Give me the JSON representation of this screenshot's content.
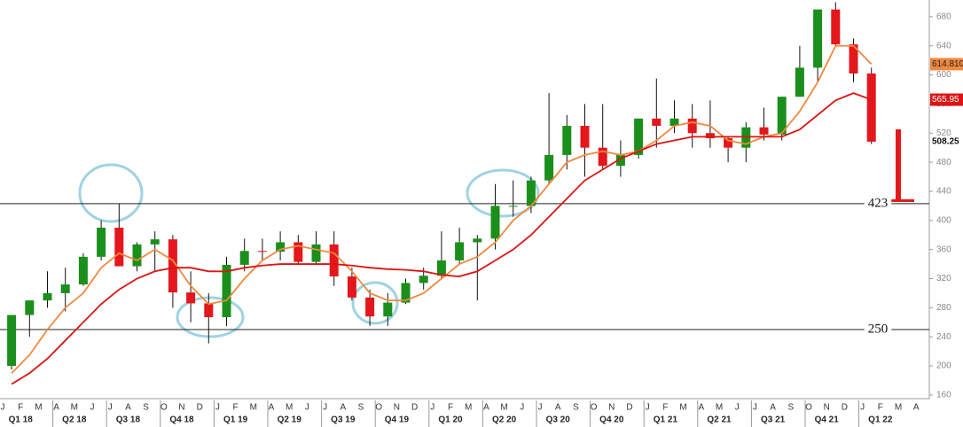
{
  "chart_data": {
    "type": "candlestick",
    "categories": [
      "J",
      "F",
      "M",
      "A",
      "M",
      "J",
      "J",
      "A",
      "S",
      "O",
      "N",
      "D",
      "J",
      "F",
      "M",
      "A",
      "M",
      "J",
      "J",
      "A",
      "S",
      "O",
      "N",
      "D",
      "J",
      "F",
      "M",
      "A",
      "M",
      "J",
      "J",
      "A",
      "S",
      "O",
      "N",
      "D",
      "J",
      "F",
      "M",
      "A",
      "M",
      "J",
      "J",
      "A",
      "S",
      "O",
      "N",
      "D",
      "J",
      "F",
      "M",
      "A"
    ],
    "quarters": [
      "Q1 18",
      "Q2 18",
      "Q3 18",
      "Q4 18",
      "Q1 19",
      "Q2 19",
      "Q3 19",
      "Q4 19",
      "Q1 20",
      "Q2 20",
      "Q3 20",
      "Q4 20",
      "Q1 21",
      "Q2 21",
      "Q3 21",
      "Q4 21",
      "Q1 22"
    ],
    "candles": {
      "up_color": "#1b8f1b",
      "down_color": "#e3171c",
      "open": [
        200,
        270,
        290,
        300,
        312,
        350,
        390,
        337,
        367,
        374,
        301,
        286,
        267,
        339,
        358,
        357,
        370,
        343,
        367,
        323,
        294,
        268,
        287,
        314,
        324,
        345,
        370,
        375,
        420,
        420,
        455,
        490,
        530,
        500,
        475,
        490,
        540,
        530,
        540,
        520,
        513,
        500,
        528,
        518,
        570,
        610,
        690,
        642,
        602,
        null,
        null,
        null
      ],
      "high": [
        270,
        290,
        330,
        335,
        355,
        400,
        423,
        370,
        385,
        380,
        330,
        300,
        350,
        375,
        375,
        385,
        380,
        385,
        385,
        335,
        305,
        300,
        320,
        335,
        385,
        390,
        380,
        450,
        455,
        460,
        575,
        545,
        560,
        560,
        510,
        540,
        595,
        565,
        560,
        565,
        515,
        535,
        555,
        570,
        640,
        690,
        700,
        650,
        610,
        null,
        null,
        null
      ],
      "low": [
        195,
        240,
        280,
        275,
        310,
        345,
        340,
        330,
        330,
        280,
        260,
        231,
        255,
        330,
        345,
        345,
        340,
        340,
        310,
        290,
        255,
        255,
        285,
        305,
        320,
        340,
        290,
        360,
        405,
        410,
        450,
        470,
        460,
        470,
        460,
        485,
        500,
        520,
        500,
        500,
        480,
        480,
        510,
        510,
        570,
        590,
        640,
        590,
        505,
        null,
        null,
        null
      ],
      "close": [
        270,
        290,
        300,
        312,
        350,
        390,
        337,
        367,
        374,
        301,
        286,
        267,
        339,
        358,
        357,
        370,
        343,
        367,
        323,
        294,
        268,
        287,
        314,
        324,
        345,
        370,
        375,
        420,
        420,
        455,
        490,
        530,
        500,
        475,
        490,
        540,
        530,
        540,
        520,
        513,
        500,
        528,
        518,
        570,
        610,
        690,
        642,
        602,
        508.25,
        null,
        null,
        null
      ]
    },
    "series": [
      {
        "color": "#f0883e",
        "last_label": "614.810",
        "values": [
          190,
          215,
          250,
          280,
          300,
          335,
          355,
          345,
          360,
          345,
          310,
          285,
          290,
          320,
          345,
          360,
          365,
          360,
          355,
          330,
          300,
          290,
          290,
          300,
          320,
          340,
          350,
          370,
          400,
          420,
          450,
          480,
          490,
          495,
          490,
          495,
          510,
          530,
          535,
          530,
          510,
          505,
          515,
          520,
          550,
          590,
          640,
          640,
          614.81,
          null,
          null,
          null
        ]
      },
      {
        "color": "#dc1414",
        "values": [
          175,
          190,
          210,
          235,
          260,
          285,
          305,
          320,
          330,
          335,
          335,
          330,
          330,
          335,
          338,
          340,
          340,
          340,
          340,
          338,
          335,
          333,
          332,
          330,
          325,
          323,
          330,
          345,
          360,
          380,
          405,
          430,
          455,
          470,
          485,
          495,
          505,
          510,
          515,
          515,
          515,
          515,
          515,
          515,
          525,
          545,
          565,
          575,
          565.95,
          null,
          null,
          null
        ]
      }
    ],
    "levels": [
      423,
      250
    ],
    "ylim": [
      155,
      703
    ],
    "yticks": [
      160,
      200,
      240,
      280,
      320,
      360,
      400,
      440,
      480,
      520,
      560,
      600,
      640,
      680
    ]
  }
}
